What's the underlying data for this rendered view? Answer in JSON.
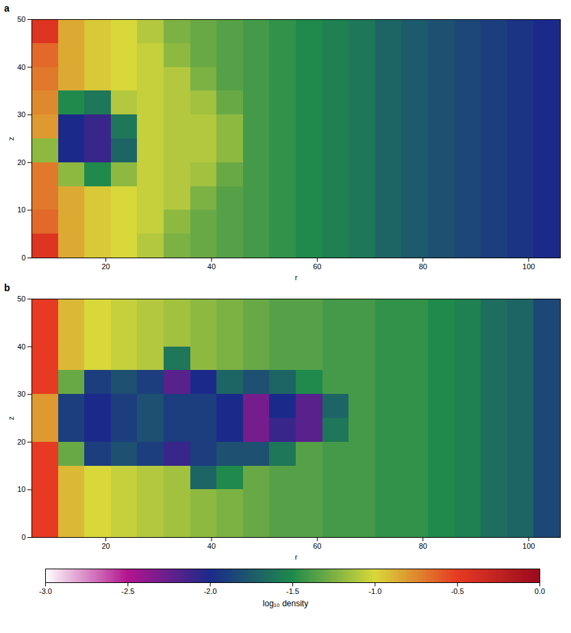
{
  "chart_data": [
    {
      "type": "heatmap",
      "panel_label": "a",
      "xlabel": "r",
      "ylabel": "z",
      "xlim": [
        6,
        106
      ],
      "ylim": [
        0,
        50
      ],
      "xticks": [
        20,
        40,
        60,
        80,
        100
      ],
      "yticks": [
        0,
        10,
        20,
        30,
        40,
        50
      ],
      "x_bins": [
        6,
        11,
        16,
        21,
        26,
        31,
        36,
        41,
        46,
        51,
        56,
        61,
        66,
        71,
        76,
        81,
        86,
        91,
        96,
        101,
        106
      ],
      "y_bins": [
        0,
        5,
        10,
        15,
        20,
        25,
        30,
        35,
        40,
        45,
        50
      ],
      "cells": [
        [
          -0.45,
          -0.85,
          -0.95,
          -1.0,
          -1.1,
          -1.25,
          -1.3,
          -1.35,
          -1.4,
          -1.45,
          -1.5,
          -1.55,
          -1.6,
          -1.7,
          -1.75,
          -1.8,
          -1.85,
          -1.9,
          -1.95,
          -2.0
        ],
        [
          -0.65,
          -0.85,
          -0.95,
          -1.0,
          -1.05,
          -1.2,
          -1.3,
          -1.35,
          -1.4,
          -1.45,
          -1.5,
          -1.55,
          -1.6,
          -1.7,
          -1.75,
          -1.8,
          -1.85,
          -1.9,
          -1.95,
          -2.0
        ],
        [
          -0.7,
          -0.85,
          -0.95,
          -1.0,
          -1.05,
          -1.1,
          -1.25,
          -1.35,
          -1.4,
          -1.45,
          -1.5,
          -1.55,
          -1.6,
          -1.7,
          -1.75,
          -1.8,
          -1.85,
          -1.9,
          -1.95,
          -2.0
        ],
        [
          -0.7,
          -1.2,
          -1.5,
          -1.2,
          -1.05,
          -1.1,
          -1.15,
          -1.3,
          -1.4,
          -1.45,
          -1.5,
          -1.55,
          -1.6,
          -1.7,
          -1.75,
          -1.8,
          -1.85,
          -1.9,
          -1.95,
          -2.0
        ],
        [
          -1.2,
          -2.0,
          -2.1,
          -1.7,
          -1.05,
          -1.1,
          -1.1,
          -1.2,
          -1.4,
          -1.45,
          -1.5,
          -1.55,
          -1.6,
          -1.7,
          -1.75,
          -1.8,
          -1.85,
          -1.9,
          -1.95,
          -2.0
        ],
        [
          -0.8,
          -2.0,
          -2.1,
          -1.6,
          -1.05,
          -1.1,
          -1.1,
          -1.2,
          -1.4,
          -1.45,
          -1.5,
          -1.55,
          -1.6,
          -1.7,
          -1.75,
          -1.8,
          -1.85,
          -1.9,
          -1.95,
          -2.0
        ],
        [
          -0.75,
          -1.5,
          -1.6,
          -1.1,
          -1.05,
          -1.1,
          -1.15,
          -1.3,
          -1.4,
          -1.45,
          -1.5,
          -1.55,
          -1.6,
          -1.7,
          -1.75,
          -1.8,
          -1.85,
          -1.9,
          -1.95,
          -2.0
        ],
        [
          -0.7,
          -0.85,
          -0.95,
          -1.0,
          -1.05,
          -1.1,
          -1.25,
          -1.35,
          -1.4,
          -1.45,
          -1.5,
          -1.55,
          -1.6,
          -1.7,
          -1.75,
          -1.8,
          -1.85,
          -1.9,
          -1.95,
          -2.0
        ],
        [
          -0.65,
          -0.85,
          -0.95,
          -1.0,
          -1.05,
          -1.2,
          -1.3,
          -1.35,
          -1.4,
          -1.45,
          -1.5,
          -1.55,
          -1.6,
          -1.7,
          -1.75,
          -1.8,
          -1.85,
          -1.9,
          -1.95,
          -2.0
        ],
        [
          -0.45,
          -0.85,
          -0.95,
          -1.0,
          -1.1,
          -1.25,
          -1.3,
          -1.35,
          -1.4,
          -1.45,
          -1.5,
          -1.55,
          -1.6,
          -1.7,
          -1.75,
          -1.8,
          -1.85,
          -1.9,
          -1.95,
          -2.0
        ]
      ]
    },
    {
      "type": "heatmap",
      "panel_label": "b",
      "xlabel": "r",
      "ylabel": "z",
      "xlim": [
        6,
        106
      ],
      "ylim": [
        0,
        50
      ],
      "xticks": [
        20,
        40,
        60,
        80,
        100
      ],
      "yticks": [
        0,
        10,
        20,
        30,
        40,
        50
      ],
      "x_bins": [
        6,
        11,
        16,
        21,
        26,
        31,
        36,
        41,
        46,
        51,
        56,
        61,
        66,
        71,
        76,
        81,
        86,
        91,
        96,
        101,
        106
      ],
      "y_bins": [
        0,
        5,
        10,
        15,
        20,
        25,
        30,
        35,
        40,
        45,
        50
      ],
      "cells": [
        [
          -0.5,
          -0.9,
          -1.0,
          -1.05,
          -1.1,
          -1.15,
          -1.2,
          -1.25,
          -1.3,
          -1.35,
          -1.35,
          -1.4,
          -1.4,
          -1.45,
          -1.45,
          -1.5,
          -1.55,
          -1.65,
          -1.7,
          -1.85
        ],
        [
          -0.5,
          -0.9,
          -1.0,
          -1.05,
          -1.1,
          -1.15,
          -1.2,
          -1.25,
          -1.3,
          -1.35,
          -1.35,
          -1.4,
          -1.4,
          -1.45,
          -1.45,
          -1.5,
          -1.55,
          -1.65,
          -1.7,
          -1.85
        ],
        [
          -0.5,
          -0.9,
          -1.0,
          -1.05,
          -1.1,
          -1.15,
          -1.7,
          -1.5,
          -1.3,
          -1.35,
          -1.35,
          -1.4,
          -1.4,
          -1.45,
          -1.45,
          -1.5,
          -1.55,
          -1.65,
          -1.7,
          -1.85
        ],
        [
          -0.5,
          -1.3,
          -1.9,
          -1.8,
          -1.9,
          -2.1,
          -1.9,
          -1.8,
          -1.8,
          -1.6,
          -1.35,
          -1.4,
          -1.4,
          -1.45,
          -1.45,
          -1.5,
          -1.55,
          -1.65,
          -1.7,
          -1.85
        ],
        [
          -0.8,
          -1.9,
          -2.0,
          -1.9,
          -1.8,
          -1.9,
          -1.9,
          -2.0,
          -2.3,
          -2.1,
          -2.2,
          -1.6,
          -1.4,
          -1.45,
          -1.45,
          -1.5,
          -1.55,
          -1.65,
          -1.7,
          -1.85
        ],
        [
          -0.8,
          -1.9,
          -2.0,
          -1.9,
          -1.8,
          -1.9,
          -1.9,
          -2.0,
          -2.3,
          -2.0,
          -2.2,
          -1.7,
          -1.4,
          -1.45,
          -1.45,
          -1.5,
          -1.55,
          -1.65,
          -1.7,
          -1.85
        ],
        [
          -0.5,
          -1.3,
          -1.9,
          -1.8,
          -1.9,
          -2.2,
          -2.0,
          -1.7,
          -1.8,
          -1.7,
          -1.5,
          -1.4,
          -1.4,
          -1.45,
          -1.45,
          -1.5,
          -1.55,
          -1.65,
          -1.7,
          -1.85
        ],
        [
          -0.5,
          -0.9,
          -1.0,
          -1.05,
          -1.1,
          -1.6,
          -1.2,
          -1.25,
          -1.3,
          -1.35,
          -1.35,
          -1.4,
          -1.4,
          -1.45,
          -1.45,
          -1.5,
          -1.55,
          -1.65,
          -1.7,
          -1.85
        ],
        [
          -0.5,
          -0.9,
          -1.0,
          -1.05,
          -1.1,
          -1.15,
          -1.2,
          -1.25,
          -1.3,
          -1.35,
          -1.35,
          -1.4,
          -1.4,
          -1.45,
          -1.45,
          -1.5,
          -1.55,
          -1.65,
          -1.7,
          -1.85
        ],
        [
          -0.5,
          -0.9,
          -1.0,
          -1.05,
          -1.1,
          -1.15,
          -1.2,
          -1.25,
          -1.3,
          -1.35,
          -1.35,
          -1.4,
          -1.4,
          -1.45,
          -1.45,
          -1.5,
          -1.55,
          -1.65,
          -1.7,
          -1.85
        ]
      ]
    }
  ],
  "colorbar": {
    "label": "log₁₀ density",
    "range": [
      -3,
      0
    ],
    "ticks": [
      {
        "value": -3,
        "label": "-3.0"
      },
      {
        "value": -2.5,
        "label": "-2.5"
      },
      {
        "value": -2,
        "label": "-2.0"
      },
      {
        "value": -1.5,
        "label": "-1.5"
      },
      {
        "value": -1,
        "label": "-1.0"
      },
      {
        "value": -0.5,
        "label": "-0.5"
      },
      {
        "value": 0,
        "label": "0.0"
      }
    ],
    "colors": [
      "#ffffff",
      "#b3148f",
      "#1b2a8a",
      "#1f8a4c",
      "#d8d83a",
      "#e63a22",
      "#9a0a1e"
    ]
  }
}
